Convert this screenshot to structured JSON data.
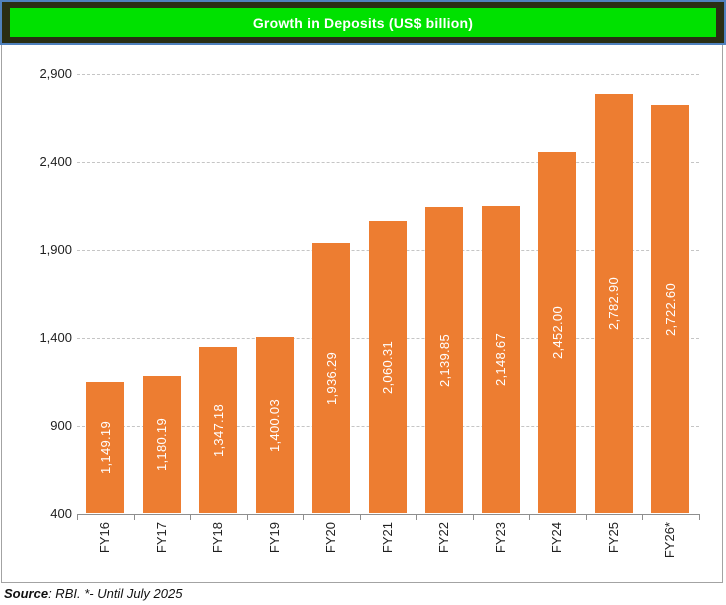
{
  "title": "Growth in Deposits (US$ billion)",
  "source": {
    "label": "Source",
    "rest": ": RBI. *- Until July 2025"
  },
  "colors": {
    "title_bg": "#00E100",
    "title_text": "#FFFFFF",
    "band_bg": "#2A2E14",
    "band_border": "#4F81BD",
    "bar": "#ED7D31",
    "bar_label": "#FFFFFF",
    "gridline": "#C5C5C5",
    "axis": "#8E8E8E",
    "chart_border": "#A3A3A3"
  },
  "chart_data": {
    "type": "bar",
    "title": "Growth in Deposits (US$ billion)",
    "categories": [
      "FY16",
      "FY17",
      "FY18",
      "FY19",
      "FY20",
      "FY21",
      "FY22",
      "FY23",
      "FY24",
      "FY25",
      "FY26*"
    ],
    "values": [
      1149.19,
      1180.19,
      1347.18,
      1400.03,
      1936.29,
      2060.31,
      2139.85,
      2148.67,
      2452.0,
      2782.9,
      2722.6
    ],
    "value_labels": [
      "1,149.19",
      "1,180.19",
      "1,347.18",
      "1,400.03",
      "1,936.29",
      "2,060.31",
      "2,139.85",
      "2,148.67",
      "2,452.00",
      "2,782.90",
      "2,722.60"
    ],
    "xlabel": "",
    "ylabel": "",
    "ylim": [
      400,
      2900
    ],
    "y_ticks": [
      400,
      900,
      1400,
      1900,
      2400,
      2900
    ],
    "y_tick_labels": [
      "400",
      "900",
      "1,400",
      "1,900",
      "2,400",
      "2,900"
    ],
    "grid": "horizontal-dashed",
    "legend_position": "none",
    "bar_label_position": "center-vertical",
    "category_label_rotation": "vertical",
    "footnote": "*- Until July 2025"
  }
}
